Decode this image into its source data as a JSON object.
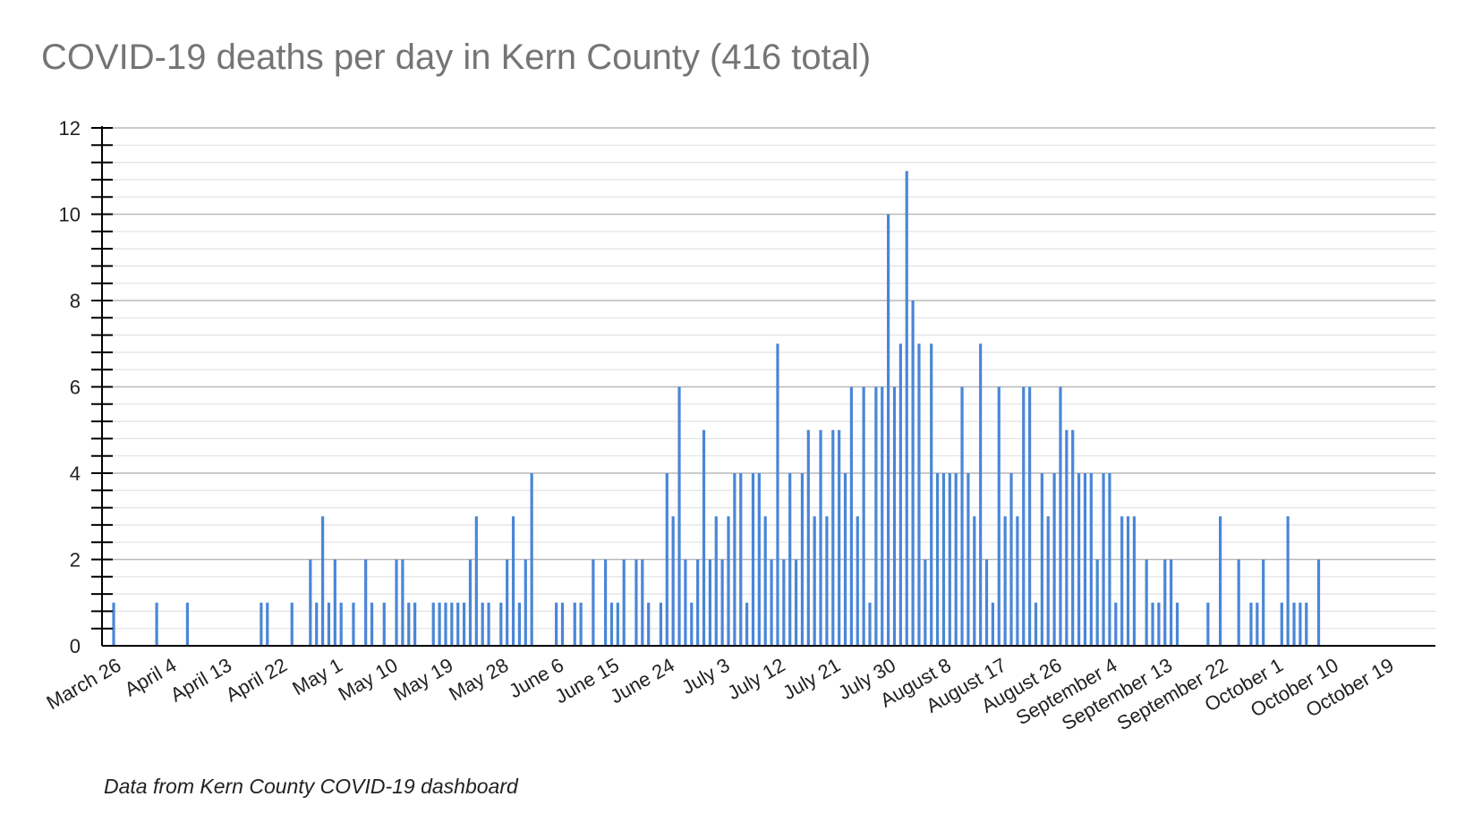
{
  "colors": {
    "bar": "#4a86d8",
    "grid_major": "#b9b9b9",
    "grid_minor": "#e2e2e2",
    "axis": "#000000",
    "title": "#757575"
  },
  "chart_data": {
    "type": "bar",
    "title": "COVID-19 deaths per day in Kern County (416 total)",
    "note": "Data from Kern County COVID-19 dashboard",
    "xlabel": "",
    "ylabel": "",
    "ylim": [
      0,
      12
    ],
    "yticks": [
      "0",
      "2",
      "4",
      "6",
      "8",
      "10",
      "12"
    ],
    "y_minor_step": 0.4,
    "grid": true,
    "x_range_days": [
      0,
      208
    ],
    "xticks": [
      {
        "day": 0,
        "label": "March 26"
      },
      {
        "day": 9,
        "label": "April 4"
      },
      {
        "day": 18,
        "label": "April 13"
      },
      {
        "day": 27,
        "label": "April 22"
      },
      {
        "day": 36,
        "label": "May 1"
      },
      {
        "day": 45,
        "label": "May 10"
      },
      {
        "day": 54,
        "label": "May 19"
      },
      {
        "day": 63,
        "label": "May 28"
      },
      {
        "day": 72,
        "label": "June 6"
      },
      {
        "day": 81,
        "label": "June 15"
      },
      {
        "day": 90,
        "label": "June 24"
      },
      {
        "day": 99,
        "label": "July 3"
      },
      {
        "day": 108,
        "label": "July 12"
      },
      {
        "day": 117,
        "label": "July 21"
      },
      {
        "day": 126,
        "label": "July 30"
      },
      {
        "day": 135,
        "label": "August 8"
      },
      {
        "day": 144,
        "label": "August 17"
      },
      {
        "day": 153,
        "label": "August 26"
      },
      {
        "day": 162,
        "label": "September 4"
      },
      {
        "day": 171,
        "label": "September 13"
      },
      {
        "day": 180,
        "label": "September 22"
      },
      {
        "day": 189,
        "label": "October 1"
      },
      {
        "day": 198,
        "label": "October 10"
      },
      {
        "day": 207,
        "label": "October 19"
      }
    ],
    "points": [
      [
        0,
        1
      ],
      [
        7,
        1
      ],
      [
        12,
        1
      ],
      [
        24,
        1
      ],
      [
        25,
        1
      ],
      [
        29,
        1
      ],
      [
        32,
        2
      ],
      [
        33,
        1
      ],
      [
        34,
        3
      ],
      [
        35,
        1
      ],
      [
        36,
        2
      ],
      [
        37,
        1
      ],
      [
        39,
        1
      ],
      [
        41,
        2
      ],
      [
        42,
        1
      ],
      [
        44,
        1
      ],
      [
        46,
        2
      ],
      [
        47,
        2
      ],
      [
        48,
        1
      ],
      [
        49,
        1
      ],
      [
        52,
        1
      ],
      [
        53,
        1
      ],
      [
        54,
        1
      ],
      [
        55,
        1
      ],
      [
        56,
        1
      ],
      [
        57,
        1
      ],
      [
        58,
        2
      ],
      [
        59,
        3
      ],
      [
        60,
        1
      ],
      [
        61,
        1
      ],
      [
        63,
        1
      ],
      [
        64,
        2
      ],
      [
        65,
        3
      ],
      [
        66,
        1
      ],
      [
        67,
        2
      ],
      [
        68,
        4
      ],
      [
        72,
        1
      ],
      [
        73,
        1
      ],
      [
        75,
        1
      ],
      [
        76,
        1
      ],
      [
        78,
        2
      ],
      [
        80,
        2
      ],
      [
        81,
        1
      ],
      [
        82,
        1
      ],
      [
        83,
        2
      ],
      [
        85,
        2
      ],
      [
        86,
        2
      ],
      [
        87,
        1
      ],
      [
        89,
        1
      ],
      [
        90,
        4
      ],
      [
        91,
        3
      ],
      [
        92,
        6
      ],
      [
        93,
        2
      ],
      [
        94,
        1
      ],
      [
        95,
        2
      ],
      [
        96,
        5
      ],
      [
        97,
        2
      ],
      [
        98,
        3
      ],
      [
        99,
        2
      ],
      [
        100,
        3
      ],
      [
        101,
        4
      ],
      [
        102,
        4
      ],
      [
        103,
        1
      ],
      [
        104,
        4
      ],
      [
        105,
        4
      ],
      [
        106,
        3
      ],
      [
        107,
        2
      ],
      [
        108,
        7
      ],
      [
        109,
        2
      ],
      [
        110,
        4
      ],
      [
        111,
        2
      ],
      [
        112,
        4
      ],
      [
        113,
        5
      ],
      [
        114,
        3
      ],
      [
        115,
        5
      ],
      [
        116,
        3
      ],
      [
        117,
        5
      ],
      [
        118,
        5
      ],
      [
        119,
        4
      ],
      [
        120,
        6
      ],
      [
        121,
        3
      ],
      [
        122,
        6
      ],
      [
        123,
        1
      ],
      [
        124,
        6
      ],
      [
        125,
        6
      ],
      [
        126,
        10
      ],
      [
        127,
        6
      ],
      [
        128,
        7
      ],
      [
        129,
        11
      ],
      [
        130,
        8
      ],
      [
        131,
        7
      ],
      [
        132,
        2
      ],
      [
        133,
        7
      ],
      [
        134,
        4
      ],
      [
        135,
        4
      ],
      [
        136,
        4
      ],
      [
        137,
        4
      ],
      [
        138,
        6
      ],
      [
        139,
        4
      ],
      [
        140,
        3
      ],
      [
        141,
        7
      ],
      [
        142,
        2
      ],
      [
        143,
        1
      ],
      [
        144,
        6
      ],
      [
        145,
        3
      ],
      [
        146,
        4
      ],
      [
        147,
        3
      ],
      [
        148,
        6
      ],
      [
        149,
        6
      ],
      [
        150,
        1
      ],
      [
        151,
        4
      ],
      [
        152,
        3
      ],
      [
        153,
        4
      ],
      [
        154,
        6
      ],
      [
        155,
        5
      ],
      [
        156,
        5
      ],
      [
        157,
        4
      ],
      [
        158,
        4
      ],
      [
        159,
        4
      ],
      [
        160,
        2
      ],
      [
        161,
        4
      ],
      [
        162,
        4
      ],
      [
        163,
        1
      ],
      [
        164,
        3
      ],
      [
        165,
        3
      ],
      [
        166,
        3
      ],
      [
        168,
        2
      ],
      [
        169,
        1
      ],
      [
        170,
        1
      ],
      [
        171,
        2
      ],
      [
        172,
        2
      ],
      [
        173,
        1
      ],
      [
        178,
        1
      ],
      [
        180,
        3
      ],
      [
        183,
        2
      ],
      [
        185,
        1
      ],
      [
        186,
        1
      ],
      [
        187,
        2
      ],
      [
        190,
        1
      ],
      [
        191,
        3
      ],
      [
        192,
        1
      ],
      [
        193,
        1
      ],
      [
        194,
        1
      ],
      [
        196,
        2
      ]
    ]
  }
}
